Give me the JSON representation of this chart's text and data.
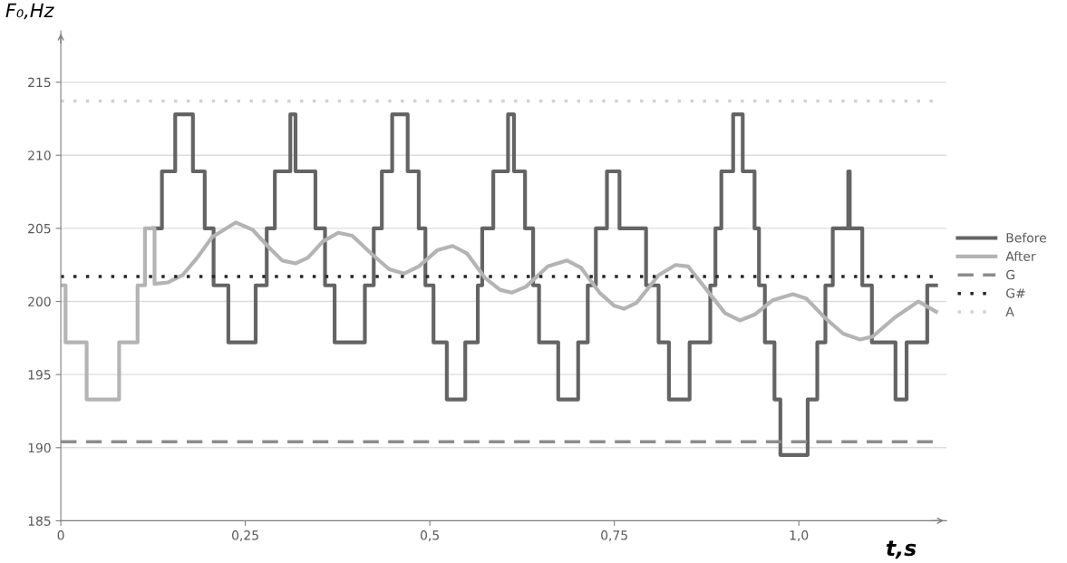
{
  "chart_data": {
    "type": "line",
    "xlabel": "t,s",
    "ylabel": "F₀,Hz",
    "xlim": [
      0,
      1.2
    ],
    "ylim": [
      185,
      218.5
    ],
    "xticks": [
      0,
      {
        "value": 0.25,
        "label": "0,25"
      },
      {
        "value": 0.5,
        "label": "0,5"
      },
      {
        "value": 0.75,
        "label": "0,75"
      },
      {
        "value": 1.0,
        "label": "1,0"
      }
    ],
    "yticks": [
      185,
      190,
      195,
      200,
      205,
      210,
      215
    ],
    "grid": "y",
    "legend": "right",
    "marker": "none",
    "series": [
      {
        "name": "Before",
        "type": "step",
        "color": "#646464",
        "x": [
          0.125,
          0.137,
          0.155,
          0.179,
          0.195,
          0.207,
          0.227,
          0.264,
          0.279,
          0.29,
          0.311,
          0.318,
          0.345,
          0.358,
          0.371,
          0.412,
          0.424,
          0.435,
          0.449,
          0.47,
          0.485,
          0.494,
          0.505,
          0.523,
          0.548,
          0.565,
          0.571,
          0.586,
          0.606,
          0.614,
          0.629,
          0.64,
          0.648,
          0.674,
          0.701,
          0.714,
          0.725,
          0.74,
          0.757,
          0.793,
          0.81,
          0.824,
          0.852,
          0.88,
          0.887,
          0.895,
          0.911,
          0.924,
          0.94,
          0.946,
          0.954,
          0.967,
          0.975,
          1.012,
          1.025,
          1.036,
          1.046,
          1.067,
          1.069,
          1.086,
          1.099,
          1.131,
          1.146,
          1.174,
          1.186
        ],
        "values": [
          205,
          208.9,
          212.8,
          208.9,
          205,
          201.1,
          197.2,
          201.1,
          205,
          208.9,
          212.8,
          208.9,
          205,
          201.1,
          197.2,
          201.1,
          205,
          208.9,
          212.8,
          208.9,
          205,
          201.1,
          197.2,
          193.3,
          197.2,
          201.1,
          205,
          208.9,
          212.8,
          208.9,
          205,
          201.1,
          197.2,
          193.3,
          197.2,
          201.1,
          205,
          208.9,
          205,
          201.1,
          197.2,
          193.3,
          197.2,
          201.1,
          205,
          208.9,
          212.8,
          208.9,
          205,
          201.1,
          197.2,
          193.3,
          189.5,
          193.3,
          197.2,
          201.1,
          205,
          208.9,
          205,
          201.1,
          197.2,
          193.3,
          197.2,
          201.1,
          201.1
        ]
      },
      {
        "name": "After",
        "color": "#b4b4b4",
        "x": [
          0,
          0.0064,
          0.0064,
          0.035,
          0.035,
          0.079,
          0.079,
          0.104,
          0.104,
          0.114,
          0.114,
          0.127,
          0.127,
          0.145,
          0.165,
          0.185,
          0.205,
          0.237,
          0.26,
          0.28,
          0.3,
          0.318,
          0.335,
          0.355,
          0.376,
          0.395,
          0.42,
          0.445,
          0.465,
          0.485,
          0.51,
          0.531,
          0.55,
          0.575,
          0.595,
          0.611,
          0.63,
          0.66,
          0.686,
          0.705,
          0.73,
          0.75,
          0.763,
          0.78,
          0.81,
          0.833,
          0.85,
          0.875,
          0.9,
          0.92,
          0.94,
          0.965,
          0.992,
          1.01,
          1.035,
          1.06,
          1.083,
          1.1,
          1.13,
          1.162,
          1.186
        ],
        "values": [
          201.1,
          201.1,
          197.2,
          197.2,
          193.3,
          193.3,
          197.2,
          197.2,
          201.1,
          201.1,
          205.0,
          205.0,
          201.2,
          201.3,
          201.8,
          203.0,
          204.4,
          205.4,
          204.9,
          203.8,
          202.8,
          202.6,
          203.0,
          204.1,
          204.7,
          204.5,
          203.3,
          202.2,
          201.9,
          202.4,
          203.5,
          203.8,
          203.3,
          201.6,
          200.8,
          200.6,
          201.0,
          202.4,
          202.8,
          202.3,
          200.6,
          199.7,
          199.5,
          199.9,
          201.8,
          202.5,
          202.4,
          200.8,
          199.2,
          198.7,
          199.1,
          200.1,
          200.5,
          200.2,
          198.9,
          197.8,
          197.4,
          197.6,
          198.9,
          200.0,
          199.3
        ]
      }
    ],
    "ref_lines": [
      {
        "axis": "y",
        "value": 190.4,
        "label": "G",
        "color": "#8c8c8c",
        "line_style": "dashed"
      },
      {
        "axis": "y",
        "value": 201.7,
        "label": "G#",
        "color": "#262626",
        "line_style": "dotted"
      },
      {
        "axis": "y",
        "value": 213.7,
        "label": "A",
        "color": "#d2d2d2",
        "line_style": "dotted"
      }
    ]
  }
}
